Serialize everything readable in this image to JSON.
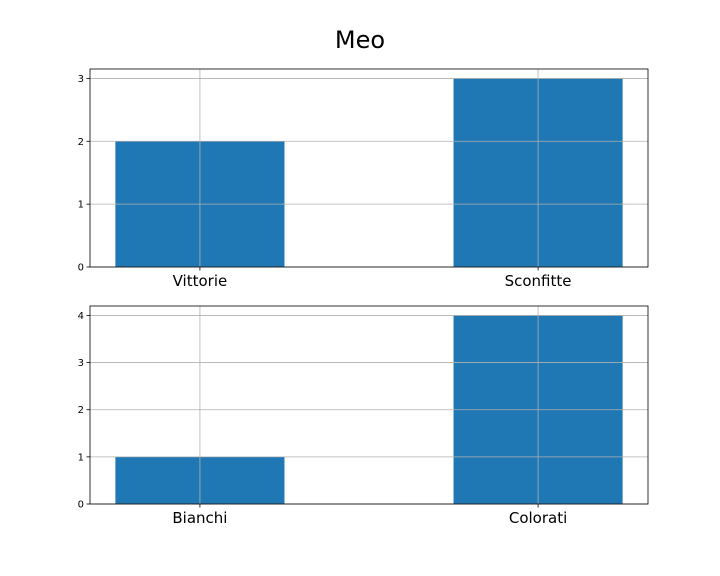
{
  "suptitle": "Meo",
  "chart_data": [
    {
      "type": "bar",
      "categories": [
        "Vittorie",
        "Sconfitte"
      ],
      "values": [
        2,
        3
      ],
      "ylim": [
        0,
        3.15
      ],
      "yticks": [
        "0",
        "1",
        "2",
        "3"
      ],
      "grid": true,
      "color": "#1f77b4"
    },
    {
      "type": "bar",
      "categories": [
        "Bianchi",
        "Colorati"
      ],
      "values": [
        1,
        4
      ],
      "ylim": [
        0,
        4.2
      ],
      "yticks": [
        "0",
        "1",
        "2",
        "3",
        "4"
      ],
      "grid": true,
      "color": "#1f77b4"
    }
  ]
}
